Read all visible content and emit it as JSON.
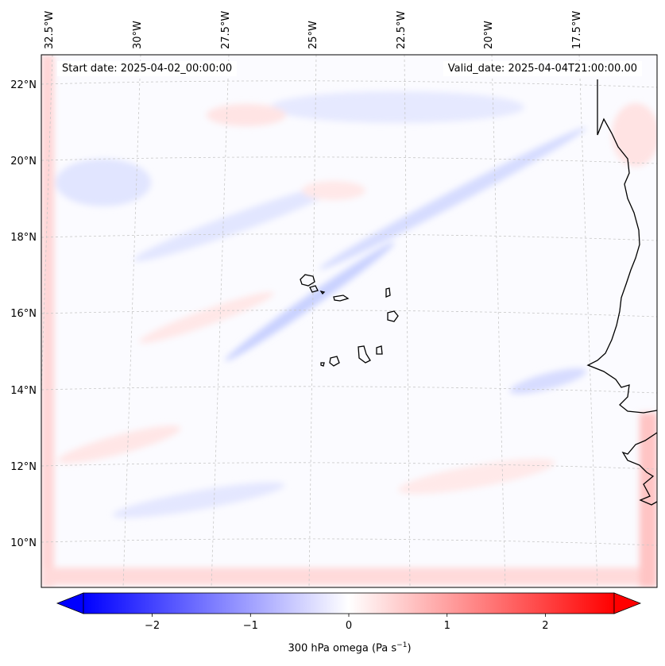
{
  "map": {
    "start_date_label": "Start date: 2025-04-02_00:00:00",
    "valid_date_label": "Valid_date: 2025-04-04T21:00:00.00",
    "lon_labels": [
      "32.5°W",
      "30°W",
      "27.5°W",
      "25°W",
      "22.5°W",
      "20°W",
      "17.5°W"
    ],
    "lat_labels": [
      "22°N",
      "20°N",
      "18°N",
      "16°N",
      "14°N",
      "12°N",
      "10°N"
    ],
    "field": "300 hPa omega",
    "colors": {
      "negative": "#0000ff",
      "zero": "#ffffff",
      "positive": "#ff0000",
      "coast": "#000000",
      "grid": "#bbbbbb"
    }
  },
  "colorbar": {
    "ticks": [
      "−2",
      "−1",
      "0",
      "1",
      "2"
    ],
    "vmin": -2.7,
    "vmax": 2.7,
    "label_text": "300 hPa omega (Pa s",
    "label_sup": "−1",
    "label_close": ")"
  }
}
